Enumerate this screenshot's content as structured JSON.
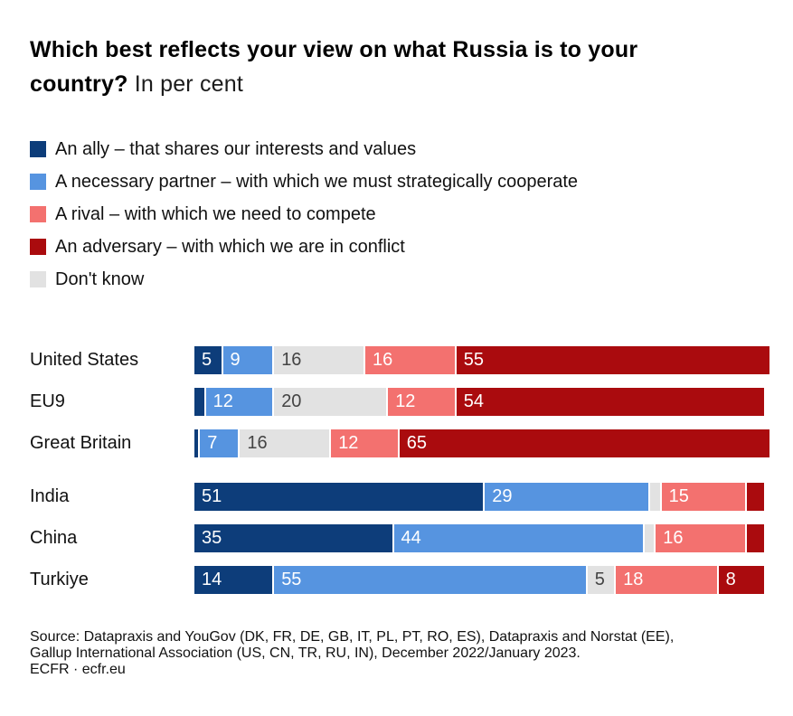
{
  "title": {
    "question": "Which best reflects your view on what Russia is to your country?",
    "unit_note": "In per cent"
  },
  "colors": {
    "ally": "#0d3d7a",
    "partner": "#5694e0",
    "rival": "#f3716f",
    "adversary": "#aa0b0e",
    "dont_know": "#e2e2e2",
    "label_on_dark": "#ffffff",
    "label_on_light": "#444444",
    "background": "#ffffff"
  },
  "legend": [
    {
      "key": "ally",
      "label": "An ally – that shares our interests and values"
    },
    {
      "key": "partner",
      "label": "A necessary partner – with which we must strategically cooperate"
    },
    {
      "key": "rival",
      "label": "A rival – with which we need to compete"
    },
    {
      "key": "adversary",
      "label": "An adversary – with which we are in conflict"
    },
    {
      "key": "dont_know",
      "label": "Don't know"
    }
  ],
  "chart_data": {
    "type": "bar",
    "orientation": "horizontal-stacked",
    "unit": "per cent",
    "title": "Which best reflects your view on what Russia is to your country? In per cent",
    "xlim": [
      0,
      100
    ],
    "grid": false,
    "legend_position": "top-left",
    "series_keys": [
      "ally",
      "partner",
      "dont_know",
      "rival",
      "adversary"
    ],
    "categories": [
      "United States",
      "EU9",
      "Great Britain",
      "India",
      "China",
      "Turkiye"
    ],
    "rows": [
      {
        "country": "United States",
        "gap_before": false,
        "segments": [
          {
            "key": "ally",
            "value": 5,
            "label": "5"
          },
          {
            "key": "partner",
            "value": 9,
            "label": "9"
          },
          {
            "key": "dont_know",
            "value": 16,
            "label": "16"
          },
          {
            "key": "rival",
            "value": 16,
            "label": "16"
          },
          {
            "key": "adversary",
            "value": 55,
            "label": "55"
          }
        ]
      },
      {
        "country": "EU9",
        "gap_before": false,
        "segments": [
          {
            "key": "ally",
            "value": 2,
            "label": ""
          },
          {
            "key": "partner",
            "value": 12,
            "label": "12"
          },
          {
            "key": "dont_know",
            "value": 20,
            "label": "20"
          },
          {
            "key": "rival",
            "value": 12,
            "label": "12"
          },
          {
            "key": "adversary",
            "value": 54,
            "label": "54"
          }
        ]
      },
      {
        "country": "Great Britain",
        "gap_before": false,
        "segments": [
          {
            "key": "ally",
            "value": 1,
            "label": ""
          },
          {
            "key": "partner",
            "value": 7,
            "label": "7"
          },
          {
            "key": "dont_know",
            "value": 16,
            "label": "16"
          },
          {
            "key": "rival",
            "value": 12,
            "label": "12"
          },
          {
            "key": "adversary",
            "value": 65,
            "label": "65"
          }
        ]
      },
      {
        "country": "India",
        "gap_before": true,
        "segments": [
          {
            "key": "ally",
            "value": 51,
            "label": "51"
          },
          {
            "key": "partner",
            "value": 29,
            "label": "29"
          },
          {
            "key": "dont_know",
            "value": 2,
            "label": ""
          },
          {
            "key": "rival",
            "value": 15,
            "label": "15"
          },
          {
            "key": "adversary",
            "value": 3,
            "label": ""
          }
        ]
      },
      {
        "country": "China",
        "gap_before": false,
        "segments": [
          {
            "key": "ally",
            "value": 35,
            "label": "35"
          },
          {
            "key": "partner",
            "value": 44,
            "label": "44"
          },
          {
            "key": "dont_know",
            "value": 2,
            "label": ""
          },
          {
            "key": "rival",
            "value": 16,
            "label": "16"
          },
          {
            "key": "adversary",
            "value": 3,
            "label": ""
          }
        ]
      },
      {
        "country": "Turkiye",
        "gap_before": false,
        "segments": [
          {
            "key": "ally",
            "value": 14,
            "label": "14"
          },
          {
            "key": "partner",
            "value": 55,
            "label": "55"
          },
          {
            "key": "dont_know",
            "value": 5,
            "label": "5"
          },
          {
            "key": "rival",
            "value": 18,
            "label": "18"
          },
          {
            "key": "adversary",
            "value": 8,
            "label": "8"
          }
        ]
      }
    ]
  },
  "footer": {
    "lines": [
      "Source: Datapraxis and YouGov (DK, FR, DE, GB, IT, PL, PT, RO, ES), Datapraxis and Norstat (EE),",
      "Gallup International Association (US, CN, TR, RU, IN), December 2022/January 2023.",
      "ECFR · ecfr.eu"
    ]
  }
}
